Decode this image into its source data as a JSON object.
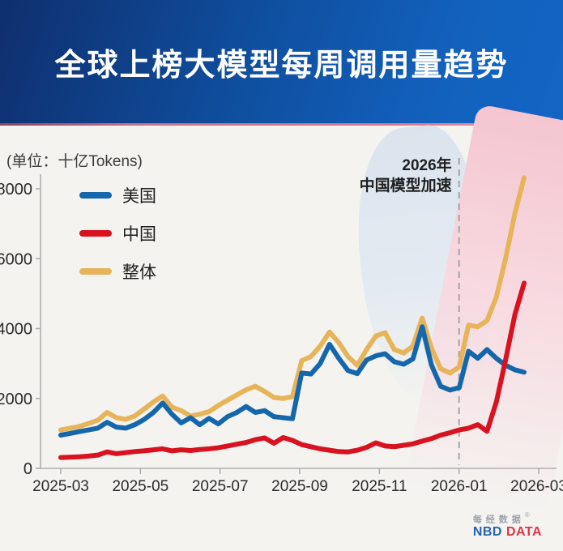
{
  "banner": {
    "title": "全球上榜大模型每周调用量趋势"
  },
  "chart": {
    "unit_label": "(单位：十亿Tokens)",
    "annotation": {
      "line1": "2026年",
      "line2": "中国模型加速"
    }
  },
  "footer": {
    "brand_cn": "每经数据",
    "brand_reg": "®",
    "brand_en_blue": "NBD",
    "brand_en_red": "DATA"
  },
  "chart_data": {
    "type": "line",
    "title": "全球上榜大模型每周调用量趋势",
    "unit": "十亿Tokens",
    "x_unit": "week",
    "x_start": "2025-03",
    "x_tick_labels": [
      "2025-03",
      "2025-05",
      "2025-07",
      "2025-09",
      "2025-11",
      "2026-01",
      "2026-03"
    ],
    "y_ticks": [
      0,
      2000,
      4000,
      6000,
      8000
    ],
    "ylim": [
      0,
      8400
    ],
    "grid": false,
    "legend_position": "upper-left",
    "dashed_marker_at": "2026-01",
    "annotation_text": "2026年 中国模型加速",
    "series": [
      {
        "key": "usa",
        "name": "美国",
        "color": "#1567ac",
        "values": [
          950,
          1000,
          1050,
          1100,
          1150,
          1320,
          1180,
          1150,
          1250,
          1400,
          1600,
          1870,
          1550,
          1300,
          1450,
          1250,
          1430,
          1270,
          1480,
          1600,
          1770,
          1600,
          1650,
          1480,
          1450,
          1420,
          2730,
          2700,
          3000,
          3550,
          3150,
          2800,
          2710,
          3100,
          3220,
          3280,
          3050,
          2980,
          3130,
          4050,
          2960,
          2350,
          2240,
          2310,
          3350,
          3150,
          3400,
          3150,
          2950,
          2820,
          2750
        ]
      },
      {
        "key": "china",
        "name": "中国",
        "color": "#d8121f",
        "values": [
          310,
          320,
          330,
          350,
          380,
          470,
          420,
          450,
          480,
          500,
          530,
          560,
          500,
          530,
          510,
          540,
          560,
          590,
          640,
          690,
          740,
          820,
          870,
          720,
          880,
          800,
          680,
          620,
          560,
          520,
          480,
          470,
          520,
          600,
          730,
          640,
          620,
          660,
          700,
          780,
          850,
          950,
          1020,
          1100,
          1150,
          1250,
          1060,
          1900,
          3100,
          4400,
          5300
        ]
      },
      {
        "key": "overall",
        "name": "整体",
        "color": "#e7b45a",
        "values": [
          1100,
          1150,
          1200,
          1280,
          1380,
          1600,
          1450,
          1400,
          1500,
          1700,
          1900,
          2070,
          1750,
          1650,
          1500,
          1550,
          1620,
          1800,
          1950,
          2100,
          2250,
          2350,
          2200,
          2030,
          2000,
          2050,
          3080,
          3200,
          3500,
          3900,
          3600,
          3200,
          2950,
          3400,
          3790,
          3880,
          3400,
          3300,
          3500,
          4300,
          3440,
          2850,
          2730,
          2900,
          4100,
          4050,
          4230,
          4900,
          6000,
          7300,
          8320
        ]
      }
    ]
  }
}
